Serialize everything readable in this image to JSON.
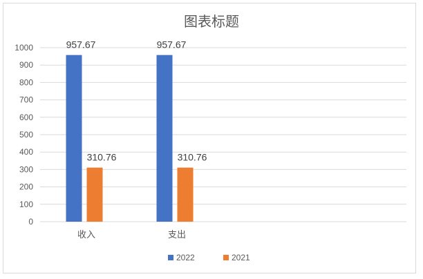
{
  "chart_data": {
    "type": "bar",
    "title": "图表标题",
    "categories": [
      "收入",
      "支出"
    ],
    "series": [
      {
        "name": "2022",
        "values": [
          957.67,
          957.67
        ],
        "color": "#4472C4"
      },
      {
        "name": "2021",
        "values": [
          310.76,
          310.76
        ],
        "color": "#ED7D31"
      }
    ],
    "data_labels": true,
    "ylim": [
      0,
      1000
    ],
    "yticks": [
      0,
      100,
      200,
      300,
      400,
      500,
      600,
      700,
      800,
      900,
      1000
    ],
    "grid": true,
    "legend_position": "bottom"
  }
}
